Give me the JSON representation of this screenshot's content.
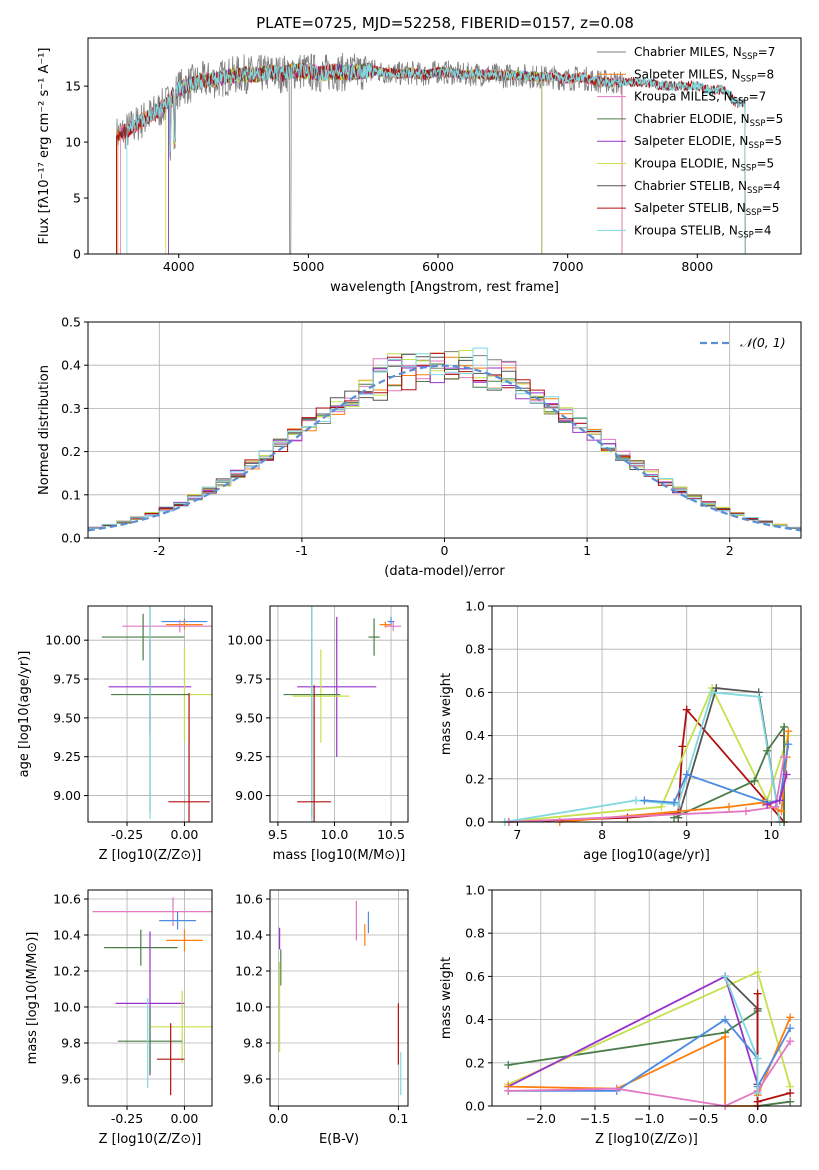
{
  "title": "PLATE=0725, MJD=52258, FIBERID=0157, z=0.08",
  "colors": {
    "chabrier_miles": "#7f7f7f",
    "salpeter_miles": "#ff7f0e",
    "kroupa_miles": "#e377c2",
    "chabrier_elodie": "#4a7d4a",
    "salpeter_elodie": "#9932cc",
    "kroupa_elodie": "#c6e04d",
    "chabrier_stelib": "#555555",
    "salpeter_stelib": "#b01010",
    "kroupa_stelib": "#7fd9df",
    "gauss": "#5a8fd6",
    "blue": "#4c8be0"
  },
  "legend_spectrum": [
    {
      "label": "Chabrier MILES, N",
      "sub": "SSP",
      "tail": "=7",
      "color": "#7f7f7f"
    },
    {
      "label": "Salpeter MILES, N",
      "sub": "SSP",
      "tail": "=8",
      "color": "#ff7f0e"
    },
    {
      "label": "Kroupa MILES, N",
      "sub": "SSP",
      "tail": "=7",
      "color": "#e377c2"
    },
    {
      "label": "Chabrier ELODIE, N",
      "sub": "SSP",
      "tail": "=5",
      "color": "#4a7d4a"
    },
    {
      "label": "Salpeter ELODIE, N",
      "sub": "SSP",
      "tail": "=5",
      "color": "#9932cc"
    },
    {
      "label": "Kroupa ELODIE, N",
      "sub": "SSP",
      "tail": "=5",
      "color": "#c6e04d"
    },
    {
      "label": "Chabrier STELIB, N",
      "sub": "SSP",
      "tail": "=4",
      "color": "#555555"
    },
    {
      "label": "Salpeter STELIB, N",
      "sub": "SSP",
      "tail": "=5",
      "color": "#b01010"
    },
    {
      "label": "Kroupa STELIB, N",
      "sub": "SSP",
      "tail": "=4",
      "color": "#7fd9df"
    }
  ],
  "chart_data": [
    {
      "type": "line",
      "id": "spectrum",
      "xlabel": "wavelength [Angstrom, rest frame]",
      "ylabel": "Flux [f_λ10^-17 erg cm^-2 s^-1 A^-1]",
      "xlim": [
        3300,
        8800
      ],
      "ylim": [
        0,
        19.3
      ],
      "xticks": [
        4000,
        5000,
        6000,
        7000,
        8000
      ],
      "yticks": [
        0,
        5,
        10,
        15
      ],
      "x": [
        3500,
        3600,
        3700,
        3800,
        3900,
        4000,
        4100,
        4200,
        4300,
        4400,
        4500,
        4600,
        4700,
        4800,
        4900,
        5000,
        5100,
        5200,
        5300,
        5400,
        5500,
        5600,
        5700,
        5800,
        5900,
        6000,
        6100,
        6200,
        6300,
        6400,
        6500,
        6600,
        6700,
        6800,
        6900,
        7000,
        7100,
        7200,
        7300,
        7400,
        7500,
        7600,
        7700,
        7800,
        7900,
        8000,
        8100,
        8200,
        8300
      ],
      "y": [
        10.5,
        11.0,
        11.8,
        12.5,
        13.3,
        14.8,
        15.2,
        15.5,
        15.6,
        15.9,
        16.1,
        16.0,
        16.2,
        16.1,
        16.4,
        16.3,
        16.1,
        16.3,
        16.2,
        16.3,
        16.4,
        16.2,
        16.1,
        16.2,
        16.0,
        16.3,
        16.2,
        16.0,
        16.1,
        16.0,
        15.9,
        16.0,
        15.9,
        15.8,
        15.8,
        15.6,
        15.8,
        15.5,
        15.4,
        15.3,
        15.4,
        15.3,
        15.1,
        15.0,
        15.0,
        15.0,
        14.6,
        14.7,
        13.5
      ]
    },
    {
      "type": "line",
      "id": "residuals",
      "xlabel": "(data-model)/error",
      "ylabel": "Normed distribution",
      "xlim": [
        -2.5,
        2.5
      ],
      "ylim": [
        0,
        0.5
      ],
      "xticks": [
        -2,
        -1,
        0,
        1,
        2
      ],
      "yticks": [
        0.0,
        0.1,
        0.2,
        0.3,
        0.4,
        0.5
      ],
      "legend": "N(0,1)",
      "bins": [
        -2.5,
        -2.4,
        -2.3,
        -2.2,
        -2.1,
        -2.0,
        -1.9,
        -1.8,
        -1.7,
        -1.6,
        -1.5,
        -1.4,
        -1.3,
        -1.2,
        -1.1,
        -1.0,
        -0.9,
        -0.8,
        -0.7,
        -0.6,
        -0.5,
        -0.4,
        -0.3,
        -0.2,
        -0.1,
        0.0,
        0.1,
        0.2,
        0.3,
        0.4,
        0.5,
        0.6,
        0.7,
        0.8,
        0.9,
        1.0,
        1.1,
        1.2,
        1.3,
        1.4,
        1.5,
        1.6,
        1.7,
        1.8,
        1.9,
        2.0,
        2.1,
        2.2,
        2.3,
        2.4,
        2.5
      ]
    },
    {
      "type": "scatter",
      "id": "age-vs-Z",
      "xlabel": "Z [log10(Z/Z⊙)]",
      "ylabel": "age  [log10(age/yr)]",
      "xlim": [
        -0.42,
        0.12
      ],
      "ylim": [
        8.83,
        10.22
      ],
      "xticks": [
        -0.25,
        0.0
      ],
      "yticks": [
        9.0,
        9.25,
        9.5,
        9.75,
        10.0
      ],
      "points": [
        {
          "x": 0.0,
          "y": 10.12,
          "xe": 0.1,
          "ye": 0.02,
          "c": "#4c8be0"
        },
        {
          "x": 0.0,
          "y": 10.1,
          "xe": 0.08,
          "ye": 0.03,
          "c": "#ff7f0e"
        },
        {
          "x": -0.02,
          "y": 10.09,
          "xe": 0.25,
          "ye": 0.04,
          "c": "#e377c2"
        },
        {
          "x": -0.18,
          "y": 10.02,
          "xe": 0.18,
          "ye": 0.15,
          "c": "#4a7d4a"
        },
        {
          "x": -0.15,
          "y": 9.7,
          "xe": 0.18,
          "ye": 0.3,
          "c": "#9932cc"
        },
        {
          "x": 0.0,
          "y": 9.65,
          "xe": 0.16,
          "ye": 0.3,
          "c": "#c6e04d"
        },
        {
          "x": -0.15,
          "y": 9.65,
          "xe": 0.17,
          "ye": 0.75,
          "c": "#4a7d4a"
        },
        {
          "x": -0.15,
          "y": 9.55,
          "xe": 0.0,
          "ye": 0.7,
          "c": "#7fd9df"
        },
        {
          "x": 0.02,
          "y": 8.96,
          "xe": 0.09,
          "ye": 0.7,
          "c": "#b01010"
        }
      ]
    },
    {
      "type": "scatter",
      "id": "age-vs-mass",
      "xlabel": "mass [log10(M/M⊙)]",
      "xlim": [
        9.43,
        10.65
      ],
      "ylim": [
        8.83,
        10.22
      ],
      "xticks": [
        9.5,
        10.0,
        10.5
      ],
      "yticks": [
        9.0,
        9.25,
        9.5,
        9.75,
        10.0
      ],
      "points": [
        {
          "x": 10.5,
          "y": 10.12,
          "xe": 0.03,
          "ye": 0.03,
          "c": "#4c8be0"
        },
        {
          "x": 10.45,
          "y": 10.1,
          "xe": 0.05,
          "ye": 0.02,
          "c": "#ff7f0e"
        },
        {
          "x": 10.52,
          "y": 10.09,
          "xe": 0.07,
          "ye": 0.03,
          "c": "#e377c2"
        },
        {
          "x": 10.35,
          "y": 10.02,
          "xe": 0.05,
          "ye": 0.12,
          "c": "#4a7d4a"
        },
        {
          "x": 10.02,
          "y": 9.7,
          "xe": 0.35,
          "ye": 0.45,
          "c": "#9932cc"
        },
        {
          "x": 9.88,
          "y": 9.64,
          "xe": 0.25,
          "ye": 0.3,
          "c": "#c6e04d"
        },
        {
          "x": 9.8,
          "y": 9.65,
          "xe": 0.25,
          "ye": 0.8,
          "c": "#4a7d4a"
        },
        {
          "x": 9.8,
          "y": 9.55,
          "xe": 0.0,
          "ye": 0.75,
          "c": "#7fd9df"
        },
        {
          "x": 9.82,
          "y": 8.96,
          "xe": 0.15,
          "ye": 0.75,
          "c": "#b01010"
        }
      ]
    },
    {
      "type": "line",
      "id": "mass-weight-vs-age",
      "xlabel": "age  [log10(age/yr)]",
      "ylabel": "mass weight",
      "xlim": [
        6.7,
        10.35
      ],
      "ylim": [
        0,
        1.0
      ],
      "xticks": [
        7,
        8,
        9,
        10
      ],
      "yticks": [
        0.0,
        0.2,
        0.4,
        0.6,
        0.8,
        1.0
      ],
      "series": [
        {
          "c": "#b01010",
          "x": [
            6.9,
            8.3,
            8.9,
            8.95,
            9.0,
            10.15,
            10.15
          ],
          "y": [
            0.0,
            0.02,
            0.04,
            0.35,
            0.52,
            0.0,
            0.4
          ]
        },
        {
          "c": "#c6e04d",
          "x": [
            6.85,
            8.7,
            9.3,
            9.95,
            10.2
          ],
          "y": [
            0.0,
            0.07,
            0.62,
            0.1,
            0.4
          ]
        },
        {
          "c": "#555555",
          "x": [
            8.9,
            9.35,
            9.85,
            10.1
          ],
          "y": [
            0.02,
            0.62,
            0.6,
            0.0
          ]
        },
        {
          "c": "#7fd9df",
          "x": [
            6.85,
            8.4,
            8.9,
            9.3,
            9.85,
            10.1
          ],
          "y": [
            0.0,
            0.1,
            0.08,
            0.6,
            0.58,
            0.0
          ]
        },
        {
          "c": "#4a7d4a",
          "x": [
            8.85,
            9.8,
            9.95,
            10.15,
            10.15
          ],
          "y": [
            0.02,
            0.19,
            0.33,
            0.44,
            0.0
          ]
        },
        {
          "c": "#ff7f0e",
          "x": [
            7.5,
            9.5,
            9.9,
            10.12,
            10.18,
            10.2
          ],
          "y": [
            0.0,
            0.07,
            0.09,
            0.05,
            0.3,
            0.42
          ]
        },
        {
          "c": "#4c8be0",
          "x": [
            8.5,
            8.85,
            9.0,
            9.95,
            10.1,
            10.2
          ],
          "y": [
            0.1,
            0.09,
            0.22,
            0.09,
            0.1,
            0.36
          ]
        },
        {
          "c": "#e377c2",
          "x": [
            6.9,
            9.7,
            10.05,
            10.15
          ],
          "y": [
            0.0,
            0.05,
            0.07,
            0.3
          ]
        },
        {
          "c": "#9932cc",
          "x": [
            9.95,
            10.1,
            10.18
          ],
          "y": [
            0.08,
            0.1,
            0.22
          ]
        }
      ]
    },
    {
      "type": "scatter",
      "id": "mass-vs-Z",
      "xlabel": "Z [log10(Z/Z⊙)]",
      "ylabel": "mass [log10(M/M⊙)]",
      "xlim": [
        -0.42,
        0.12
      ],
      "ylim": [
        9.45,
        10.65
      ],
      "xticks": [
        -0.25,
        0.0
      ],
      "yticks": [
        9.6,
        9.8,
        10.0,
        10.2,
        10.4,
        10.6
      ],
      "points": [
        {
          "x": -0.05,
          "y": 10.53,
          "xe": 0.35,
          "ye": 0.08,
          "c": "#e377c2"
        },
        {
          "x": -0.03,
          "y": 10.48,
          "xe": 0.08,
          "ye": 0.05,
          "c": "#4c8be0"
        },
        {
          "x": 0.0,
          "y": 10.37,
          "xe": 0.08,
          "ye": 0.06,
          "c": "#ff7f0e"
        },
        {
          "x": -0.19,
          "y": 10.33,
          "xe": 0.16,
          "ye": 0.1,
          "c": "#4a7d4a"
        },
        {
          "x": -0.15,
          "y": 10.02,
          "xe": 0.15,
          "ye": 0.4,
          "c": "#9932cc"
        },
        {
          "x": -0.01,
          "y": 9.89,
          "xe": 0.14,
          "ye": 0.2,
          "c": "#c6e04d"
        },
        {
          "x": -0.15,
          "y": 9.81,
          "xe": 0.14,
          "ye": 0.18,
          "c": "#4a7d4a"
        },
        {
          "x": -0.16,
          "y": 9.8,
          "xe": 0.0,
          "ye": 0.25,
          "c": "#7fd9df"
        },
        {
          "x": -0.06,
          "y": 9.71,
          "xe": 0.06,
          "ye": 0.2,
          "c": "#b01010"
        }
      ]
    },
    {
      "type": "scatter",
      "id": "mass-vs-EBV",
      "xlabel": "E(B-V)",
      "xlim": [
        -0.007,
        0.108
      ],
      "ylim": [
        9.45,
        10.65
      ],
      "xticks": [
        0.0,
        0.1
      ],
      "yticks": [
        9.6,
        9.8,
        10.0,
        10.2,
        10.4,
        10.6
      ],
      "points": [
        {
          "x": 0.065,
          "y": 10.48,
          "xe": 0.0,
          "ye": 0.11,
          "c": "#e377c2"
        },
        {
          "x": 0.075,
          "y": 10.47,
          "xe": 0.0,
          "ye": 0.06,
          "c": "#4c8be0"
        },
        {
          "x": 0.072,
          "y": 10.4,
          "xe": 0.0,
          "ye": 0.06,
          "c": "#ff7f0e"
        },
        {
          "x": 0.001,
          "y": 10.38,
          "xe": 0.0,
          "ye": 0.06,
          "c": "#9932cc"
        },
        {
          "x": 0.002,
          "y": 10.22,
          "xe": 0.0,
          "ye": 0.1,
          "c": "#4a7d4a"
        },
        {
          "x": 0.001,
          "y": 10.0,
          "xe": 0.0,
          "ye": 0.25,
          "c": "#c6e04d"
        },
        {
          "x": 0.1,
          "y": 9.85,
          "xe": 0.0,
          "ye": 0.17,
          "c": "#b01010"
        },
        {
          "x": 0.102,
          "y": 9.63,
          "xe": 0.0,
          "ye": 0.12,
          "c": "#7fd9df"
        }
      ]
    },
    {
      "type": "line",
      "id": "mass-weight-vs-Z",
      "xlabel": "Z [log10(Z/Z⊙)]",
      "ylabel": "mass weight",
      "xlim": [
        -2.45,
        0.4
      ],
      "ylim": [
        0,
        1.0
      ],
      "xticks": [
        -2.0,
        -1.5,
        -1.0,
        -0.5,
        0.0
      ],
      "yticks": [
        0.0,
        0.2,
        0.4,
        0.6,
        0.8,
        1.0
      ],
      "series": [
        {
          "c": "#4a7d4a",
          "x": [
            -2.3,
            -0.3,
            0.0,
            0.0,
            0.3
          ],
          "y": [
            0.19,
            0.34,
            0.44,
            0.0,
            0.02
          ]
        },
        {
          "c": "#c6e04d",
          "x": [
            -2.3,
            0.0,
            0.3
          ],
          "y": [
            0.1,
            0.62,
            0.09
          ]
        },
        {
          "c": "#9932cc",
          "x": [
            -2.3,
            -0.3,
            0.0
          ],
          "y": [
            0.09,
            0.6,
            0.1
          ]
        },
        {
          "c": "#555555",
          "x": [
            -0.3,
            0.0,
            0.0
          ],
          "y": [
            0.6,
            0.45,
            0.1
          ]
        },
        {
          "c": "#ff7f0e",
          "x": [
            -2.3,
            -1.3,
            -0.3,
            -0.3,
            0.0,
            0.0,
            0.3
          ],
          "y": [
            0.09,
            0.08,
            0.32,
            0.0,
            0.0,
            0.05,
            0.41
          ]
        },
        {
          "c": "#4c8be0",
          "x": [
            -2.3,
            -1.3,
            -0.3,
            0.0,
            0.0,
            0.3
          ],
          "y": [
            0.07,
            0.07,
            0.4,
            0.22,
            0.09,
            0.36
          ]
        },
        {
          "c": "#e377c2",
          "x": [
            -2.3,
            -1.3,
            -0.3,
            0.0,
            0.3
          ],
          "y": [
            0.07,
            0.08,
            0.0,
            0.07,
            0.3
          ]
        },
        {
          "c": "#b01010",
          "x": [
            0.0,
            0.0,
            0.0,
            0.3
          ],
          "y": [
            0.52,
            0.0,
            0.02,
            0.06
          ]
        },
        {
          "c": "#7fd9df",
          "x": [
            -0.3,
            0.0,
            0.0
          ],
          "y": [
            0.6,
            0.22,
            0.06
          ]
        }
      ]
    }
  ]
}
